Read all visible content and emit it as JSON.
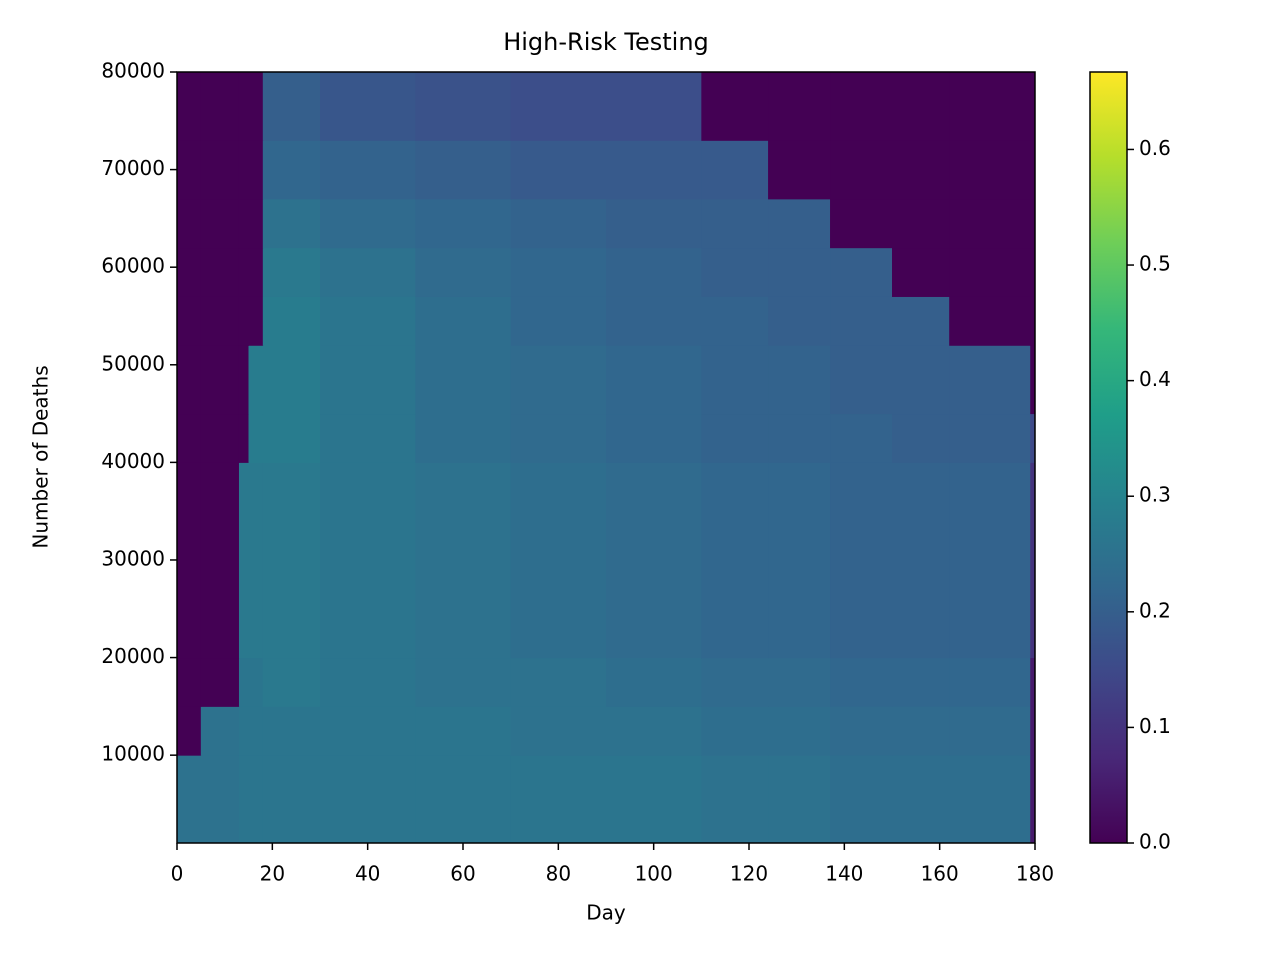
{
  "chart_data": {
    "type": "heatmap",
    "title": "High-Risk Testing",
    "x_label": "Day",
    "y_label": "Number of Deaths",
    "colormap": "viridis",
    "x_edges": [
      0,
      5,
      13,
      15,
      18,
      30,
      50,
      70,
      90,
      110,
      124,
      137,
      150,
      162,
      179,
      180
    ],
    "y_edges": [
      1000,
      10000,
      15000,
      20000,
      40000,
      45000,
      52000,
      57000,
      62000,
      67000,
      73000,
      80000
    ],
    "z": [
      [
        0.25,
        0.25,
        0.26,
        0.26,
        0.26,
        0.26,
        0.26,
        0.26,
        0.26,
        0.25,
        0.25,
        0.24,
        0.24,
        0.24,
        0.05
      ],
      [
        0,
        0.25,
        0.26,
        0.26,
        0.26,
        0.26,
        0.26,
        0.25,
        0.25,
        0.24,
        0.24,
        0.23,
        0.23,
        0.23,
        0.05
      ],
      [
        0,
        0,
        0.26,
        0.26,
        0.27,
        0.26,
        0.25,
        0.25,
        0.24,
        0.23,
        0.23,
        0.22,
        0.22,
        0.22,
        0.05
      ],
      [
        0,
        0,
        0.27,
        0.27,
        0.27,
        0.26,
        0.25,
        0.24,
        0.23,
        0.22,
        0.22,
        0.21,
        0.21,
        0.21,
        0.1
      ],
      [
        0,
        0,
        0,
        0.28,
        0.28,
        0.26,
        0.24,
        0.23,
        0.22,
        0.21,
        0.21,
        0.21,
        0.2,
        0.2,
        0.15
      ],
      [
        0,
        0,
        0,
        0.28,
        0.28,
        0.26,
        0.24,
        0.23,
        0.22,
        0.21,
        0.21,
        0.2,
        0.2,
        0.2,
        0
      ],
      [
        0,
        0,
        0,
        0,
        0.28,
        0.26,
        0.24,
        0.22,
        0.21,
        0.21,
        0.2,
        0.2,
        0.2,
        0,
        0
      ],
      [
        0,
        0,
        0,
        0,
        0.27,
        0.25,
        0.23,
        0.22,
        0.21,
        0.2,
        0.2,
        0.2,
        0,
        0,
        0
      ],
      [
        0,
        0,
        0,
        0,
        0.25,
        0.23,
        0.22,
        0.21,
        0.2,
        0.2,
        0.2,
        0,
        0,
        0,
        0
      ],
      [
        0,
        0,
        0,
        0,
        0.22,
        0.21,
        0.2,
        0.19,
        0.19,
        0.19,
        0,
        0,
        0,
        0,
        0
      ],
      [
        0,
        0,
        0,
        0,
        0.2,
        0.18,
        0.17,
        0.16,
        0.16,
        0,
        0,
        0,
        0,
        0,
        0
      ]
    ],
    "xlim": [
      0,
      180
    ],
    "xticks": [
      0,
      20,
      40,
      60,
      80,
      100,
      120,
      140,
      160,
      180
    ],
    "ylim": [
      1000,
      80000
    ],
    "yticks": [
      10000,
      20000,
      30000,
      40000,
      50000,
      60000,
      70000,
      80000
    ],
    "clim": [
      0,
      0.667
    ],
    "cticks": [
      0.0,
      0.1,
      0.2,
      0.3,
      0.4,
      0.5,
      0.6
    ]
  }
}
